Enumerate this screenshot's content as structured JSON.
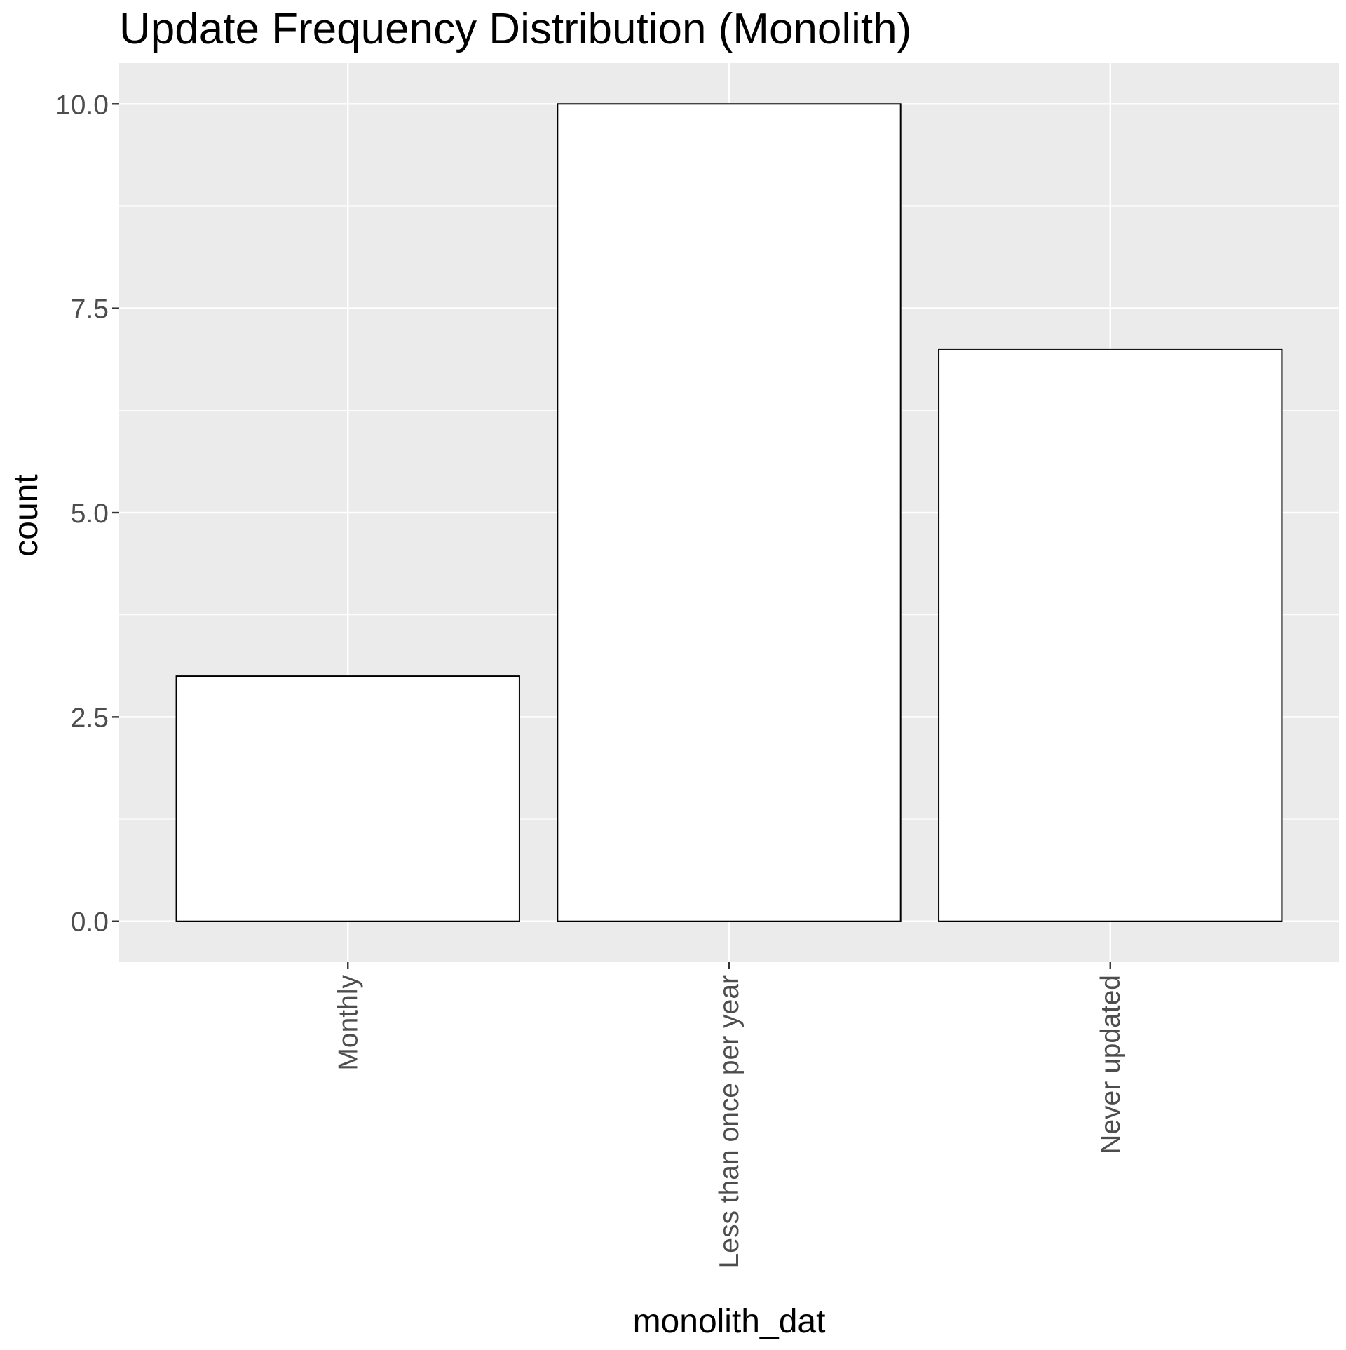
{
  "chart_data": {
    "type": "bar",
    "title": "Update Frequency Distribution (Monolith)",
    "xlabel": "monolith_dat",
    "ylabel": "count",
    "categories": [
      "Monthly",
      "Less than once per year",
      "Never updated"
    ],
    "values": [
      3,
      10,
      7
    ],
    "ylim": [
      -0.5,
      10.5
    ],
    "yticks": [
      0.0,
      2.5,
      5.0,
      7.5,
      10.0
    ],
    "ytick_labels": [
      "0.0",
      "2.5",
      "5.0",
      "7.5",
      "10.0"
    ],
    "grid": true,
    "legend": "none",
    "x_tick_rotation": "vertical",
    "colors": {
      "panel_background": "#ebebeb",
      "grid_line": "#ffffff",
      "bar_fill": "#ffffff",
      "bar_outline": "#000000",
      "tick_text": "#4d4d4d",
      "tick_mark": "#333333"
    }
  }
}
